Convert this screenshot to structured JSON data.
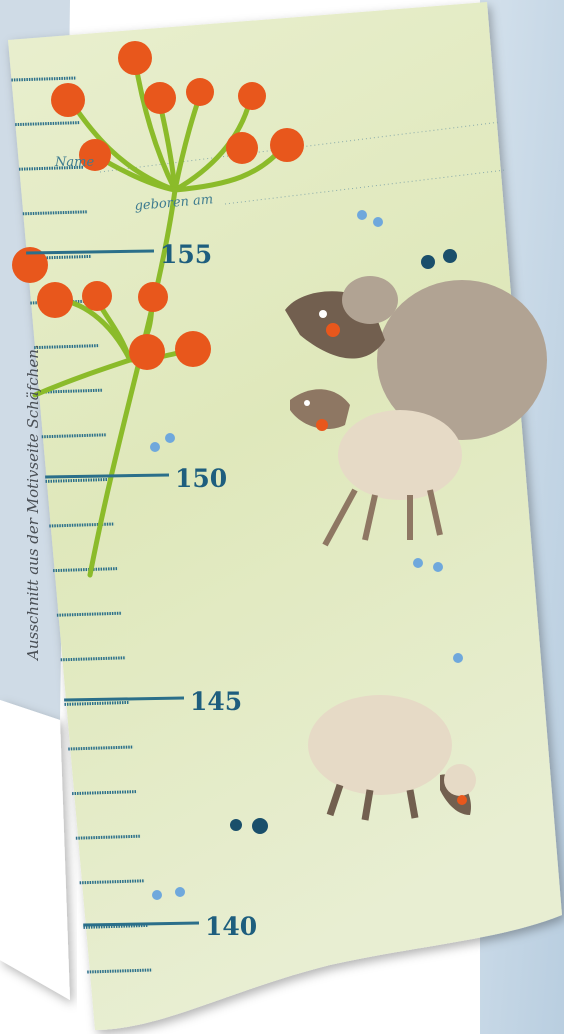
{
  "caption": "Ausschnitt aus der Motivseite Schäfchen.",
  "fields": {
    "name": "Name",
    "born": "geboren am"
  },
  "ruler": {
    "labels": [
      "155",
      "150",
      "145",
      "140"
    ]
  }
}
